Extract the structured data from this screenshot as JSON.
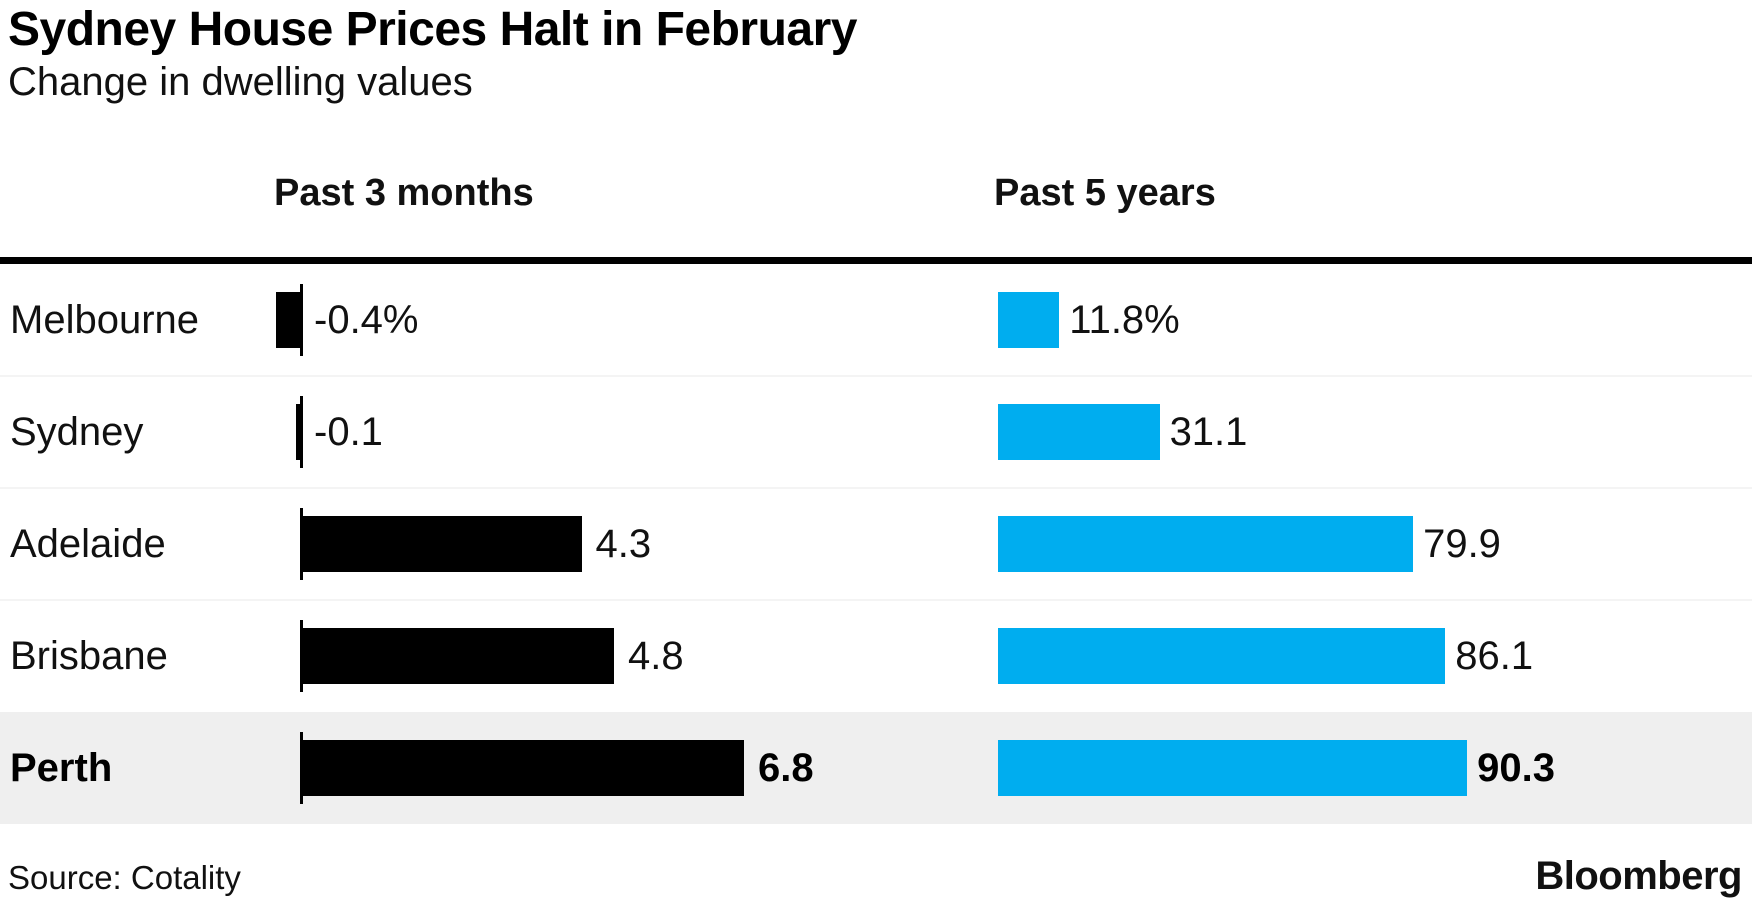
{
  "header": {
    "title": "Sydney House Prices Halt in February",
    "subtitle": "Change in dwelling values"
  },
  "columns": [
    {
      "label": "Past 3 months"
    },
    {
      "label": "Past 5 years"
    }
  ],
  "chart_data": {
    "type": "bar",
    "orientation": "horizontal",
    "title": "Sydney House Prices Halt in February",
    "subtitle": "Change in dwelling values",
    "unit": "percent",
    "categories": [
      "Melbourne",
      "Sydney",
      "Adelaide",
      "Brisbane",
      "Perth"
    ],
    "series": [
      {
        "name": "Past 3 months",
        "values": [
          -0.4,
          -0.1,
          4.3,
          4.8,
          6.8
        ],
        "value_labels": [
          "-0.4%",
          "-0.1",
          "4.3",
          "4.8",
          "6.8"
        ],
        "color": "#000000"
      },
      {
        "name": "Past 5 years",
        "values": [
          11.8,
          31.1,
          79.9,
          86.1,
          90.3
        ],
        "value_labels": [
          "11.8%",
          "31.1",
          "79.9",
          "86.1",
          "90.3"
        ],
        "color": "#00adef"
      }
    ],
    "highlighted_category": "Perth",
    "highlight_color": "#efefef",
    "grid": false,
    "legend_position": "column-headers"
  },
  "footer": {
    "source": "Source: Cotality",
    "brand": "Bloomberg"
  }
}
